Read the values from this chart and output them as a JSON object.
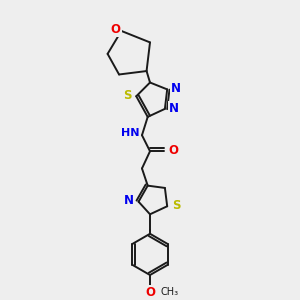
{
  "bg_color": "#eeeeee",
  "bond_color": "#1a1a1a",
  "atom_colors": {
    "N": "#0000ee",
    "O": "#ee0000",
    "S": "#bbbb00",
    "C": "#1a1a1a"
  },
  "figsize": [
    3.0,
    3.0
  ],
  "dpi": 100,
  "lw": 1.4
}
